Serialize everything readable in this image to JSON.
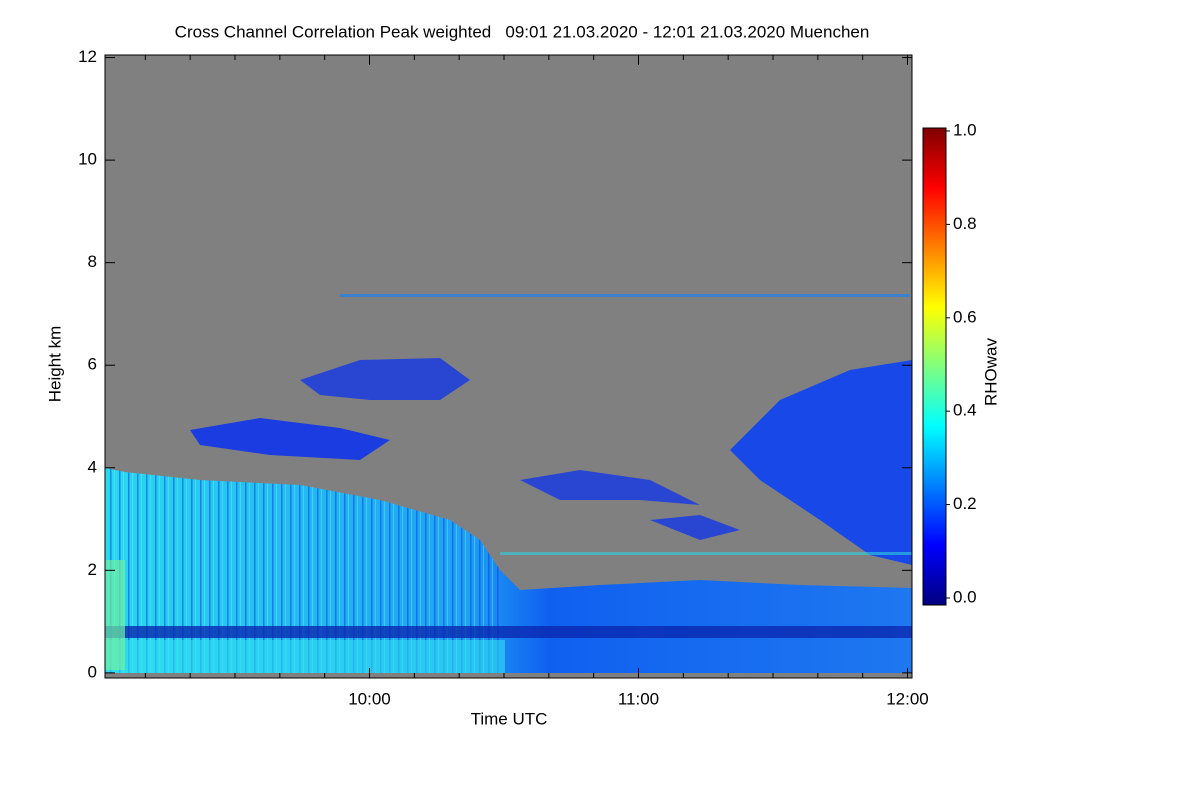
{
  "chart_data": {
    "type": "heatmap",
    "title": "Cross Channel Correlation Peak weighted   09:01 21.03.2020 - 12:01 21.03.2020 Muenchen",
    "xlabel": "Time UTC",
    "ylabel": "Height km",
    "xlim": [
      9.0167,
      12.0167
    ],
    "xticks": [
      {
        "value": 10,
        "label": "10:00"
      },
      {
        "value": 11,
        "label": "11:00"
      },
      {
        "value": 12,
        "label": "12:00"
      }
    ],
    "xminor_ticks": [
      9.1667,
      9.3333,
      9.5,
      9.6667,
      9.8333,
      10.1667,
      10.3333,
      10.5,
      10.6667,
      10.8333,
      11.1667,
      11.3333,
      11.5,
      11.6667,
      11.8333
    ],
    "ylim": [
      -0.1,
      12.05
    ],
    "yticks": [
      0,
      2,
      4,
      6,
      8,
      10,
      12
    ],
    "colorbar": {
      "label": "RHOwav",
      "lim": [
        0,
        1
      ],
      "ticks": [
        {
          "value": 0,
          "label": "0.0"
        },
        {
          "value": 0.2,
          "label": "0.2"
        },
        {
          "value": 0.4,
          "label": "0.4"
        },
        {
          "value": 0.6,
          "label": "0.6"
        },
        {
          "value": 0.8,
          "label": "0.8"
        },
        {
          "value": 1,
          "label": "1.0"
        }
      ],
      "colormap": "jet"
    },
    "missing_color": "#808080"
  }
}
